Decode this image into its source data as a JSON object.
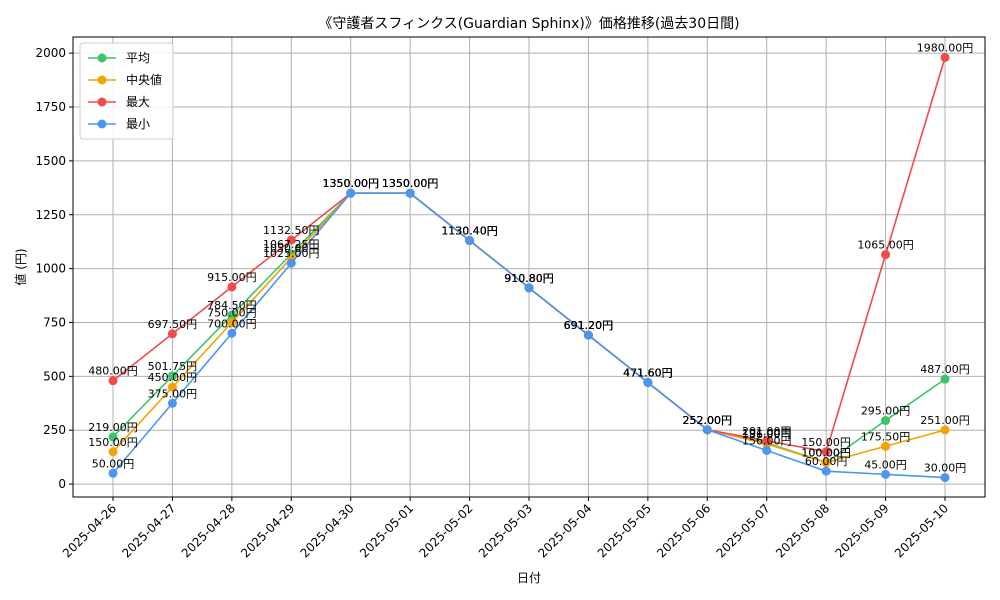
{
  "chart_data": {
    "type": "line",
    "title": "《守護者スフィンクス(Guardian Sphinx)》価格推移(過去30日間)",
    "xlabel": "日付",
    "ylabel": "値 (円)",
    "ylim": [
      -60,
      2075
    ],
    "yticks": [
      0,
      250,
      500,
      750,
      1000,
      1250,
      1500,
      1750,
      2000
    ],
    "grid": true,
    "legend_position": "top-left",
    "value_suffix": "円",
    "categories": [
      "2025-04-26",
      "2025-04-27",
      "2025-04-28",
      "2025-04-29",
      "2025-04-30",
      "2025-05-01",
      "2025-05-02",
      "2025-05-03",
      "2025-05-04",
      "2025-05-05",
      "2025-05-06",
      "2025-05-07",
      "2025-05-08",
      "2025-05-09",
      "2025-05-10"
    ],
    "series": [
      {
        "name": "平均",
        "color": "#3dc46b",
        "values": [
          219,
          501.75,
          784.5,
          1067.25,
          1350,
          1350,
          1130.4,
          910.8,
          691.2,
          471.6,
          252,
          191,
          100,
          295,
          487
        ]
      },
      {
        "name": "中央値",
        "color": "#f5a300",
        "values": [
          150,
          450,
          750,
          1050,
          1350,
          1350,
          1130.4,
          910.8,
          691.2,
          471.6,
          252,
          186,
          100,
          175.5,
          251
        ]
      },
      {
        "name": "最大",
        "color": "#f04a4a",
        "values": [
          480,
          697.5,
          915,
          1132.5,
          1350,
          1350,
          1130.4,
          910.8,
          691.2,
          471.6,
          252,
          201,
          150,
          1065,
          1980
        ]
      },
      {
        "name": "最小",
        "color": "#4b97ef",
        "values": [
          50,
          375,
          700,
          1025,
          1350,
          1350,
          1130.4,
          910.8,
          691.2,
          471.6,
          252,
          156,
          60,
          45,
          30
        ]
      }
    ]
  }
}
